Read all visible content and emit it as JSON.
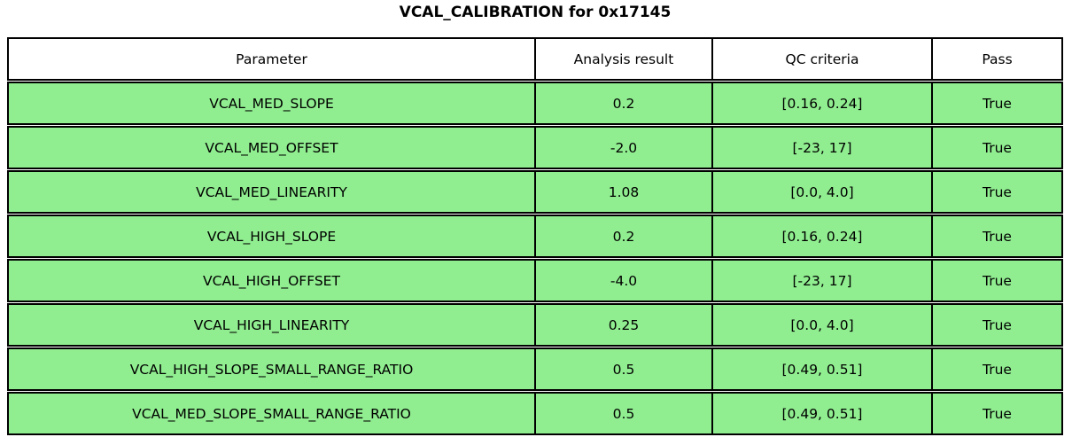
{
  "title": "VCAL_CALIBRATION for 0x17145",
  "colors": {
    "pass_row_bg": "#90EE90",
    "header_bg": "#FFFFFF",
    "border": "#000000",
    "text": "#000000"
  },
  "table": {
    "headers": [
      "Parameter",
      "Analysis result",
      "QC criteria",
      "Pass"
    ],
    "rows": [
      {
        "parameter": "VCAL_MED_SLOPE",
        "result": "0.2",
        "qc": "[0.16, 0.24]",
        "pass": "True"
      },
      {
        "parameter": "VCAL_MED_OFFSET",
        "result": "-2.0",
        "qc": "[-23, 17]",
        "pass": "True"
      },
      {
        "parameter": "VCAL_MED_LINEARITY",
        "result": "1.08",
        "qc": "[0.0, 4.0]",
        "pass": "True"
      },
      {
        "parameter": "VCAL_HIGH_SLOPE",
        "result": "0.2",
        "qc": "[0.16, 0.24]",
        "pass": "True"
      },
      {
        "parameter": "VCAL_HIGH_OFFSET",
        "result": "-4.0",
        "qc": "[-23, 17]",
        "pass": "True"
      },
      {
        "parameter": "VCAL_HIGH_LINEARITY",
        "result": "0.25",
        "qc": "[0.0, 4.0]",
        "pass": "True"
      },
      {
        "parameter": "VCAL_HIGH_SLOPE_SMALL_RANGE_RATIO",
        "result": "0.5",
        "qc": "[0.49, 0.51]",
        "pass": "True"
      },
      {
        "parameter": "VCAL_MED_SLOPE_SMALL_RANGE_RATIO",
        "result": "0.5",
        "qc": "[0.49, 0.51]",
        "pass": "True"
      }
    ]
  },
  "chart_data": {
    "type": "table",
    "title": "VCAL_CALIBRATION for 0x17145",
    "columns": [
      "Parameter",
      "Analysis result",
      "QC criteria",
      "Pass"
    ],
    "rows": [
      [
        "VCAL_MED_SLOPE",
        0.2,
        "[0.16, 0.24]",
        true
      ],
      [
        "VCAL_MED_OFFSET",
        -2.0,
        "[-23, 17]",
        true
      ],
      [
        "VCAL_MED_LINEARITY",
        1.08,
        "[0.0, 4.0]",
        true
      ],
      [
        "VCAL_HIGH_SLOPE",
        0.2,
        "[0.16, 0.24]",
        true
      ],
      [
        "VCAL_HIGH_OFFSET",
        -4.0,
        "[-23, 17]",
        true
      ],
      [
        "VCAL_HIGH_LINEARITY",
        0.25,
        "[0.0, 4.0]",
        true
      ],
      [
        "VCAL_HIGH_SLOPE_SMALL_RANGE_RATIO",
        0.5,
        "[0.49, 0.51]",
        true
      ],
      [
        "VCAL_MED_SLOPE_SMALL_RANGE_RATIO",
        0.5,
        "[0.49, 0.51]",
        true
      ]
    ],
    "all_rows_pass_color": "#90EE90",
    "legend_position": "none",
    "grid": true
  }
}
